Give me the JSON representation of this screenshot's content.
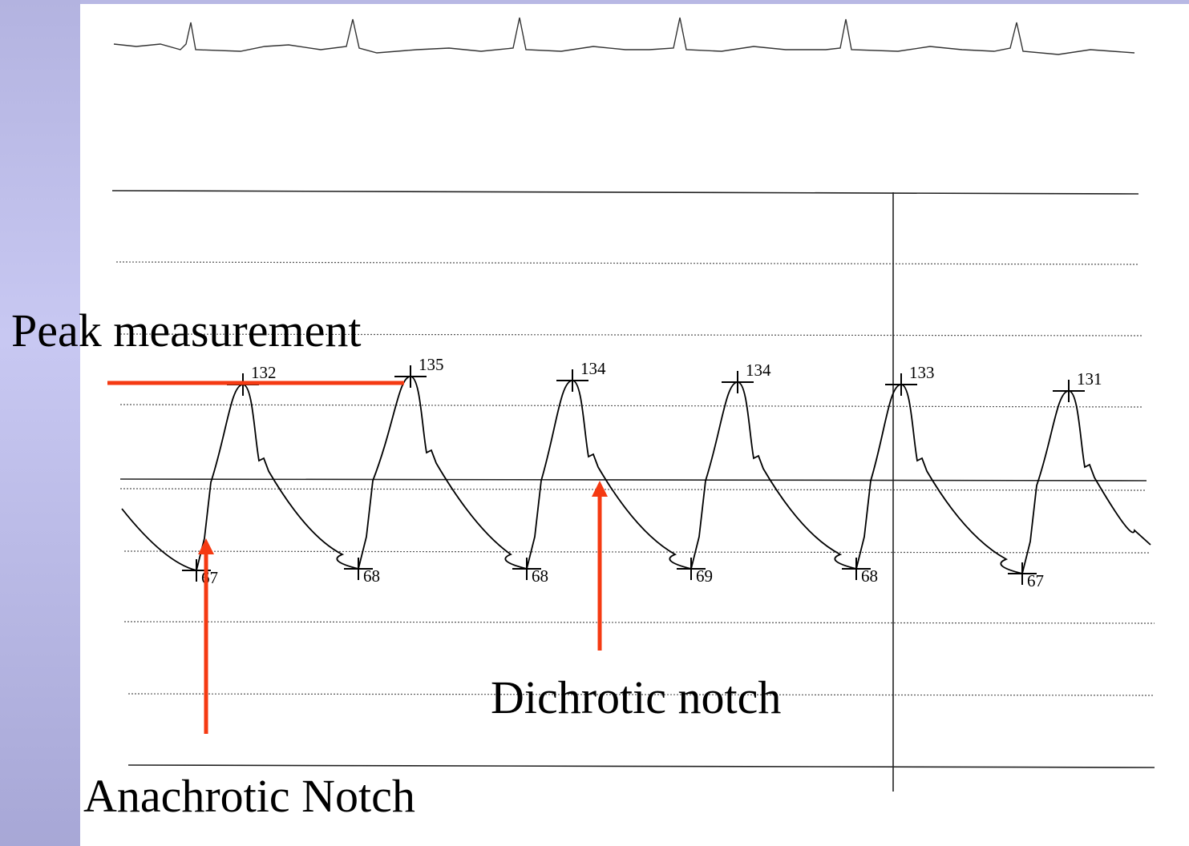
{
  "annotations": {
    "peak": "Peak measurement",
    "dichrotic": "Dichrotic notch",
    "anachrotic": "Anachrotic Notch"
  },
  "beats": [
    {
      "systolic": "132",
      "diastolic": "67"
    },
    {
      "systolic": "135",
      "diastolic": "68"
    },
    {
      "systolic": "134",
      "diastolic": "68"
    },
    {
      "systolic": "134",
      "diastolic": "69"
    },
    {
      "systolic": "133",
      "diastolic": "68"
    },
    {
      "systolic": "131",
      "diastolic": "67"
    }
  ]
}
